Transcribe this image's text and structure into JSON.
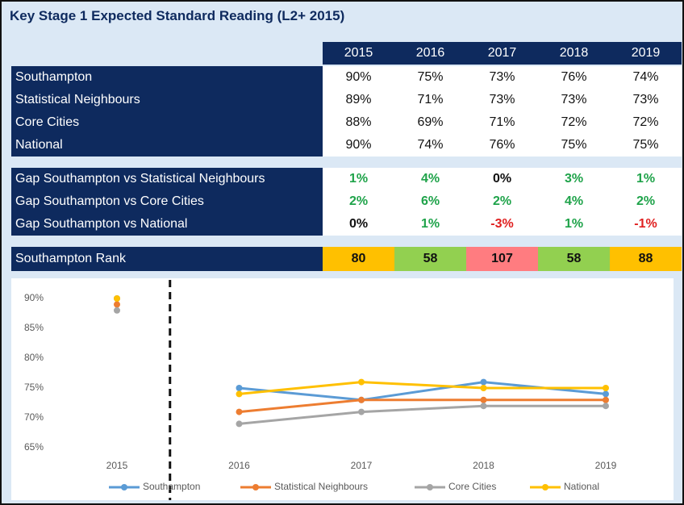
{
  "title": "Key Stage 1 Expected Standard Reading (L2+ 2015)",
  "table": {
    "years": [
      "2015",
      "2016",
      "2017",
      "2018",
      "2019"
    ],
    "rows": [
      {
        "label": "Southampton",
        "cells": [
          "90%",
          "75%",
          "73%",
          "76%",
          "74%"
        ]
      },
      {
        "label": "Statistical Neighbours",
        "cells": [
          "89%",
          "71%",
          "73%",
          "73%",
          "73%"
        ]
      },
      {
        "label": "Core Cities",
        "cells": [
          "88%",
          "69%",
          "71%",
          "72%",
          "72%"
        ]
      },
      {
        "label": "National",
        "cells": [
          "90%",
          "74%",
          "76%",
          "75%",
          "75%"
        ]
      }
    ],
    "gaps": [
      {
        "label": "Gap Southampton vs Statistical Neighbours",
        "cells": [
          "1%",
          "4%",
          "0%",
          "3%",
          "1%"
        ],
        "colors": [
          "#1fa34a",
          "#1fa34a",
          "#111111",
          "#1fa34a",
          "#1fa34a"
        ]
      },
      {
        "label": "Gap Southampton vs Core Cities",
        "cells": [
          "2%",
          "6%",
          "2%",
          "4%",
          "2%"
        ],
        "colors": [
          "#1fa34a",
          "#1fa34a",
          "#1fa34a",
          "#1fa34a",
          "#1fa34a"
        ]
      },
      {
        "label": "Gap Southampton vs National",
        "cells": [
          "0%",
          "1%",
          "-3%",
          "1%",
          "-1%"
        ],
        "colors": [
          "#111111",
          "#1fa34a",
          "#e02020",
          "#1fa34a",
          "#e02020"
        ]
      }
    ],
    "rank": {
      "label": "Southampton Rank",
      "cells": [
        80,
        58,
        107,
        58,
        88
      ],
      "colors": [
        "#ffc000",
        "#92d050",
        "#ff7c80",
        "#92d050",
        "#ffc000"
      ]
    }
  },
  "chart_data": {
    "type": "line",
    "categories": [
      "2015",
      "2016",
      "2017",
      "2018",
      "2019"
    ],
    "divider_after": "2015",
    "ylim": [
      65,
      90
    ],
    "yticks": [
      {
        "value": 65,
        "label": "65%"
      },
      {
        "value": 70,
        "label": "70%"
      },
      {
        "value": 75,
        "label": "75%"
      },
      {
        "value": 80,
        "label": "80%"
      },
      {
        "value": 85,
        "label": "85%"
      },
      {
        "value": 90,
        "label": "90%"
      }
    ],
    "series": [
      {
        "name": "Southampton",
        "color": "#5b9bd5",
        "values": [
          90,
          75,
          73,
          76,
          74
        ]
      },
      {
        "name": "Statistical Neighbours",
        "color": "#ed7d31",
        "values": [
          89,
          71,
          73,
          73,
          73
        ]
      },
      {
        "name": "Core Cities",
        "color": "#a5a5a5",
        "values": [
          88,
          69,
          71,
          72,
          72
        ]
      },
      {
        "name": "National",
        "color": "#ffc000",
        "values": [
          90,
          74,
          76,
          75,
          75
        ]
      }
    ]
  }
}
